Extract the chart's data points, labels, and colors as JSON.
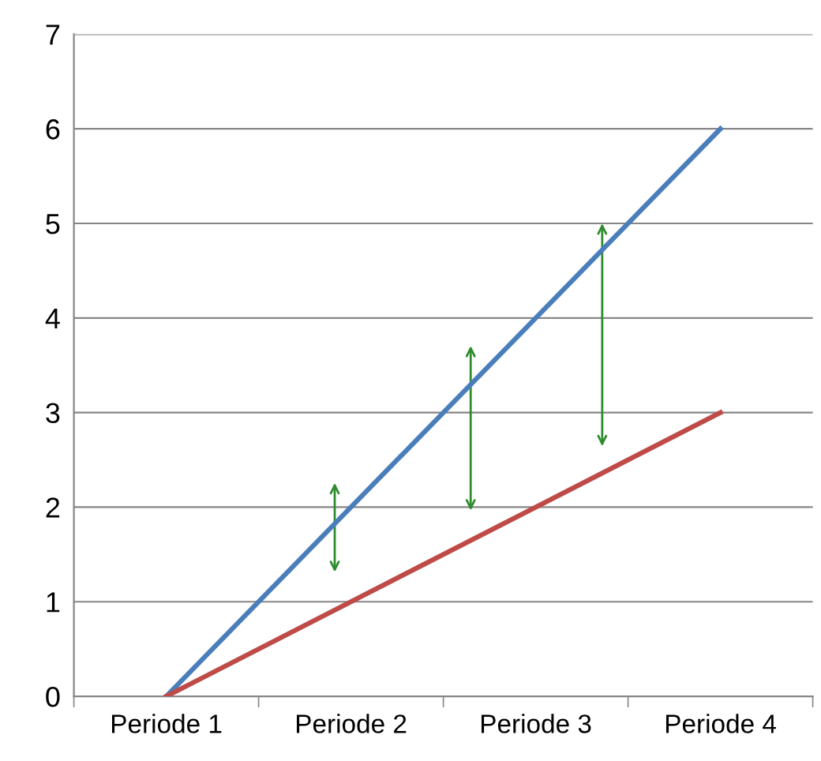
{
  "chart_data": {
    "type": "line",
    "categories": [
      "Periode 1",
      "Periode 2",
      "Periode 3",
      "Periode 4"
    ],
    "series": [
      {
        "color": "#4a7ebb",
        "values": [
          0,
          2,
          4,
          6
        ]
      },
      {
        "color": "#be4b48",
        "values": [
          0,
          1,
          2,
          3
        ]
      }
    ],
    "ylim": [
      0,
      7
    ],
    "yticks": [
      0,
      1,
      2,
      3,
      4,
      5,
      6,
      7
    ],
    "grid": "y",
    "legend": false,
    "marker": "none",
    "line_style": "solid"
  }
}
